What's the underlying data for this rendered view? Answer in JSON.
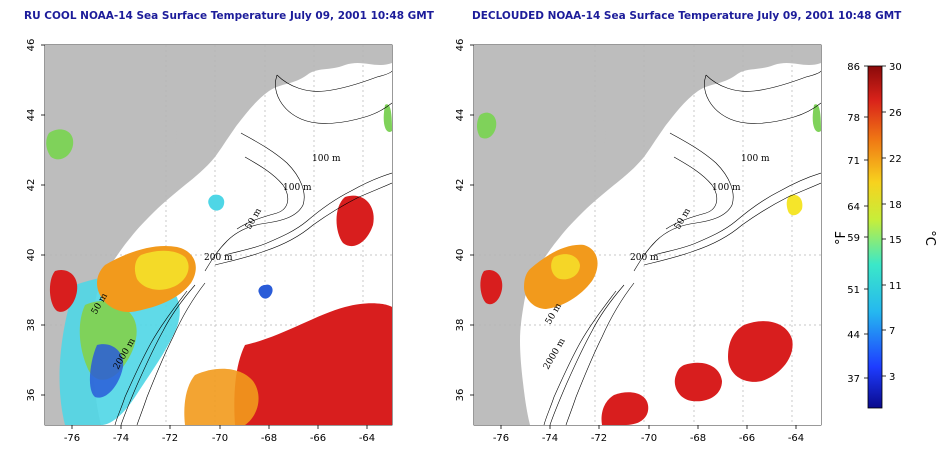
{
  "panels": [
    {
      "title": "RU COOL NOAA-14 Sea Surface Temperature July 09, 2001 10:48 GMT"
    },
    {
      "title": "DECLOUDED NOAA-14 Sea Surface Temperature July 09, 2001 10:48 GMT"
    }
  ],
  "axes": {
    "lon_ticks": [
      "-76",
      "-74",
      "-72",
      "-70",
      "-68",
      "-66",
      "-64"
    ],
    "lat_ticks": [
      "46",
      "44",
      "42",
      "40",
      "38",
      "36"
    ]
  },
  "isobaths": [
    "100 m",
    "100 m",
    "50 m",
    "200 m",
    "50 m",
    "2000 m"
  ],
  "colorbar": {
    "fahrenheit_ticks": [
      "86",
      "78",
      "71",
      "64",
      "59",
      "51",
      "44",
      "37"
    ],
    "celsius_ticks": [
      "30",
      "26",
      "22",
      "18",
      "15",
      "11",
      "7",
      "3"
    ],
    "unit_f": "°F",
    "unit_c": "°C"
  },
  "colors": {
    "land": "#bdbdbd",
    "ocean": "#ffffff",
    "title": "#1c1c9a",
    "warm": "#d81e1e",
    "orange": "#f29a1c",
    "yellow": "#f5e52a",
    "green": "#7fd25a",
    "cyan": "#4fd6e6",
    "blue": "#2a5cd8"
  }
}
